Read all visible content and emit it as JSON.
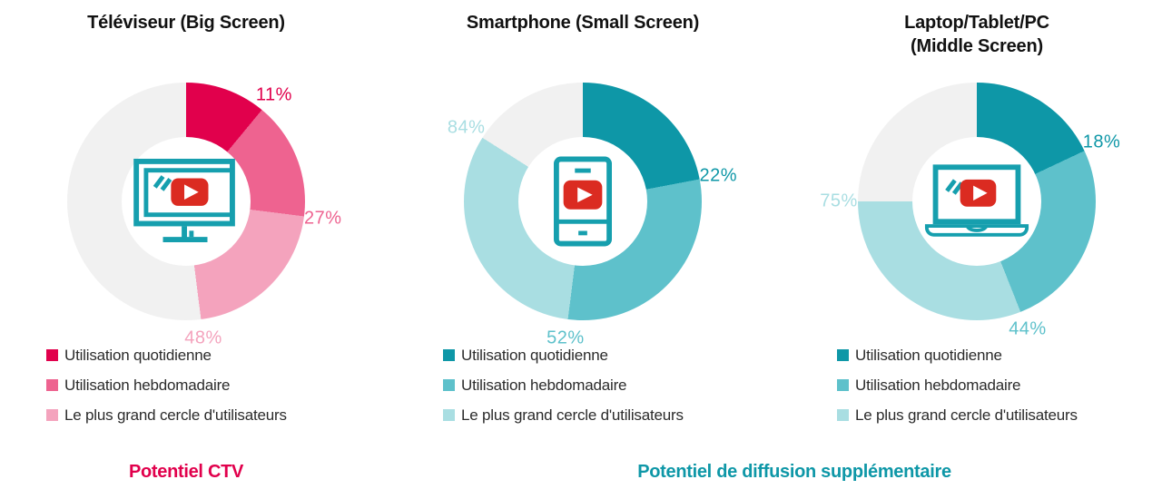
{
  "chart_data": [
    {
      "type": "donut",
      "title": "Téléviseur (Big Screen)",
      "center_icon": "tv-youtube-icon",
      "remainder_color": "#F1F1F1",
      "note": "values are cumulative audience shares shown at segment boundaries",
      "series": [
        {
          "label": "Utilisation quotidienne",
          "value_pct": 11,
          "display": "11%",
          "color": "#E1004C"
        },
        {
          "label": "Utilisation hebdomadaire",
          "value_pct": 27,
          "display": "27%",
          "color": "#EE6390"
        },
        {
          "label": "Le plus grand cercle d'utilisateurs",
          "value_pct": 48,
          "display": "48%",
          "color": "#F4A3BD"
        }
      ]
    },
    {
      "type": "donut",
      "title": "Smartphone (Small Screen)",
      "center_icon": "smartphone-youtube-icon",
      "remainder_color": "#F1F1F1",
      "note": "values are cumulative audience shares shown at segment boundaries",
      "series": [
        {
          "label": "Utilisation quotidienne",
          "value_pct": 22,
          "display": "22%",
          "color": "#0E97A7"
        },
        {
          "label": "Utilisation hebdomadaire",
          "value_pct": 52,
          "display": "52%",
          "color": "#5EC1CB"
        },
        {
          "label": "Le plus grand cercle d'utilisateurs",
          "value_pct": 84,
          "display": "84%",
          "color": "#A9DEE2"
        }
      ]
    },
    {
      "type": "donut",
      "title": "Laptop/Tablet/PC\n(Middle Screen)",
      "center_icon": "laptop-youtube-icon",
      "remainder_color": "#F1F1F1",
      "note": "values are cumulative audience shares shown at segment boundaries",
      "series": [
        {
          "label": "Utilisation quotidienne",
          "value_pct": 18,
          "display": "18%",
          "color": "#0E97A7"
        },
        {
          "label": "Utilisation hebdomadaire",
          "value_pct": 44,
          "display": "44%",
          "color": "#5EC1CB"
        },
        {
          "label": "Le plus grand cercle d'utilisateurs",
          "value_pct": 75,
          "display": "75%",
          "color": "#A9DEE2"
        }
      ]
    }
  ],
  "footers": [
    {
      "label": "Potentiel CTV",
      "color": "#E1004C"
    },
    {
      "label": "Potentiel de diffusion supplémentaire",
      "color": "#0E97A7"
    }
  ],
  "icons": {
    "youtube_play_color": "#DB2B21",
    "device_outline_color": "#169FAE"
  }
}
